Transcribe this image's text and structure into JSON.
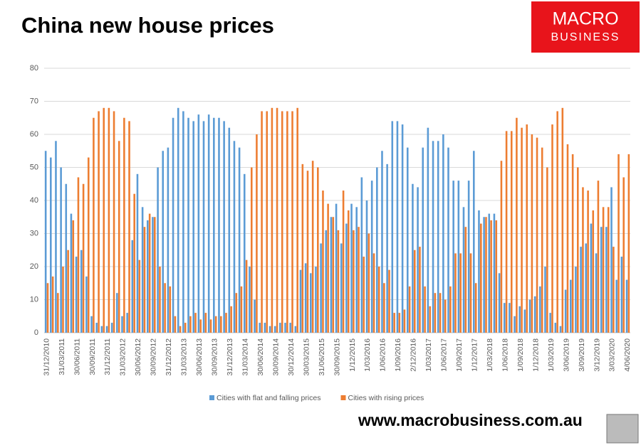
{
  "logo": [
    "MACRO",
    "BUSINESS"
  ],
  "footer": "www.macrobusiness.com.au",
  "chart_data": {
    "type": "bar",
    "title": "China new house prices",
    "categories": [
      "31/12/2010",
      null,
      null,
      "31/03/2011",
      null,
      null,
      "30/06/2011",
      null,
      null,
      "30/09/2011",
      null,
      null,
      "31/12/2011",
      null,
      null,
      "31/03/2012",
      null,
      null,
      "30/06/2012",
      null,
      null,
      "30/09/2012",
      null,
      null,
      "31/12/2012",
      null,
      null,
      "31/03/2013",
      null,
      null,
      "30/06/2013",
      null,
      null,
      "30/09/2013",
      null,
      null,
      "31/12/2013",
      null,
      null,
      "31/03/2014",
      null,
      null,
      "30/06/2014",
      null,
      null,
      "30/09/2014",
      null,
      null,
      "30/12/2014",
      null,
      null,
      "30/03/2015",
      null,
      null,
      "31/06/2015",
      null,
      null,
      "30/09/2015",
      null,
      null,
      "1/12/2015",
      null,
      null,
      "1/03/2016",
      null,
      null,
      "1/06/2016",
      null,
      null,
      "1/09/2016",
      null,
      null,
      "2/12/2016",
      null,
      null,
      "1/03/2017",
      null,
      null,
      "1/06/2017",
      null,
      null,
      "1/09/2017",
      null,
      null,
      "1/12/2017",
      null,
      null,
      "1/03/2018",
      null,
      null,
      "1/06/2018",
      null,
      null,
      "1/09/2018",
      null,
      null,
      "1/12/2018",
      null,
      null,
      "1/03/2019",
      null,
      null,
      "3/06/2019",
      null,
      null,
      "3/09/2019",
      null,
      null,
      "3/12/2019",
      null,
      null,
      "3/03/2020",
      null,
      null,
      "4/06/2020"
    ],
    "series": [
      {
        "name": "Cities with flat and falling prices",
        "color": "#5b9bd5",
        "values": [
          55,
          53,
          58,
          50,
          45,
          36,
          23,
          25,
          17,
          5,
          3,
          2,
          2,
          3,
          12,
          5,
          6,
          28,
          48,
          38,
          34,
          35,
          50,
          55,
          56,
          65,
          68,
          67,
          65,
          64,
          66,
          64,
          66,
          65,
          65,
          64,
          62,
          58,
          56,
          48,
          20,
          10,
          3,
          3,
          2,
          2,
          3,
          3,
          3,
          2,
          19,
          21,
          18,
          20,
          27,
          31,
          35,
          39,
          27,
          33,
          39,
          38,
          47,
          40,
          46,
          50,
          55,
          51,
          64,
          64,
          63,
          56,
          45,
          44,
          56,
          62,
          58,
          58,
          60,
          56,
          46,
          46,
          38,
          46,
          55,
          37,
          35,
          36,
          36,
          18,
          9,
          9,
          5,
          8,
          7,
          10,
          11,
          14,
          20,
          6,
          3,
          2,
          13,
          16,
          20,
          26,
          27,
          33,
          24,
          32,
          32,
          44,
          16,
          23,
          16
        ]
      },
      {
        "name": "Cities with rising prices",
        "color": "#ed7d31",
        "values": [
          15,
          17,
          12,
          20,
          25,
          34,
          47,
          45,
          53,
          65,
          67,
          68,
          68,
          67,
          58,
          65,
          64,
          42,
          22,
          32,
          36,
          35,
          20,
          15,
          14,
          5,
          2,
          3,
          5,
          6,
          4,
          6,
          4,
          5,
          5,
          6,
          8,
          12,
          14,
          22,
          50,
          60,
          67,
          67,
          68,
          68,
          67,
          67,
          67,
          68,
          51,
          49,
          52,
          50,
          43,
          39,
          35,
          31,
          43,
          37,
          31,
          32,
          23,
          30,
          24,
          20,
          15,
          19,
          6,
          6,
          7,
          14,
          25,
          26,
          14,
          8,
          12,
          12,
          10,
          14,
          24,
          24,
          32,
          24,
          15,
          33,
          35,
          34,
          34,
          52,
          61,
          61,
          65,
          62,
          63,
          60,
          59,
          56,
          50,
          63,
          67,
          68,
          57,
          54,
          50,
          44,
          43,
          37,
          46,
          38,
          38,
          26,
          54,
          47,
          54
        ]
      }
    ],
    "ylim": [
      0,
      80
    ],
    "yticks": [
      0,
      10,
      20,
      30,
      40,
      50,
      60,
      70,
      80
    ],
    "grid": true
  }
}
